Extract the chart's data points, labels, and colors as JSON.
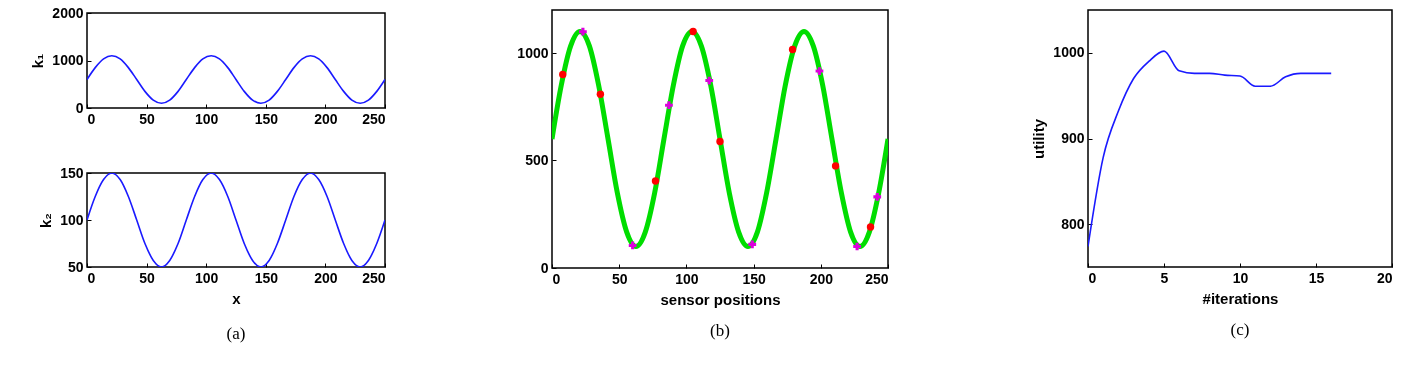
{
  "chart_data": [
    {
      "type": "line",
      "ylabel": "k₁",
      "color": "#1a1aff",
      "x": [
        0,
        6.9,
        13.9,
        20.8,
        27.8,
        34.7,
        41.7,
        48.6,
        55.6,
        62.5,
        69.4,
        76.4,
        83.3,
        90.3,
        97.2,
        104.2,
        111.1,
        118.1,
        125,
        131.9,
        138.9,
        145.8,
        152.8,
        159.7,
        166.7,
        173.6,
        180.6,
        187.5,
        194.4,
        201.4,
        208.3,
        215.3,
        222.2,
        229.2,
        236.1,
        243.1,
        250
      ],
      "values": [
        600,
        850,
        1033,
        1100,
        1033,
        850,
        600,
        350,
        167,
        100,
        167,
        350,
        600,
        850,
        1033,
        1100,
        1033,
        850,
        600,
        350,
        167,
        100,
        167,
        350,
        600,
        850,
        1033,
        1100,
        1033,
        850,
        600,
        350,
        167,
        100,
        167,
        350,
        600
      ],
      "xlim": [
        0,
        250
      ],
      "xticks": [
        0,
        50,
        100,
        150,
        200,
        250
      ],
      "ylim": [
        0,
        2000
      ],
      "yticks": [
        0,
        1000,
        2000
      ]
    },
    {
      "type": "line",
      "xlabel": "x",
      "ylabel": "k₂",
      "color": "#1a1aff",
      "x": [
        0,
        6.9,
        13.9,
        20.8,
        27.8,
        34.7,
        41.7,
        48.6,
        55.6,
        62.5,
        69.4,
        76.4,
        83.3,
        90.3,
        97.2,
        104.2,
        111.1,
        118.1,
        125,
        131.9,
        138.9,
        145.8,
        152.8,
        159.7,
        166.7,
        173.6,
        180.6,
        187.5,
        194.4,
        201.4,
        208.3,
        215.3,
        222.2,
        229.2,
        236.1,
        243.1,
        250
      ],
      "values": [
        100,
        125,
        143,
        150,
        143,
        125,
        100,
        75,
        57,
        50,
        57,
        75,
        100,
        125,
        143,
        150,
        143,
        125,
        100,
        75,
        57,
        50,
        57,
        75,
        100,
        125,
        143,
        150,
        143,
        125,
        100,
        75,
        57,
        50,
        57,
        75,
        100
      ],
      "xlim": [
        0,
        250
      ],
      "xticks": [
        0,
        50,
        100,
        150,
        200,
        250
      ],
      "ylim": [
        50,
        150
      ],
      "yticks": [
        50,
        100,
        150
      ],
      "annotations": [
        "(a)"
      ]
    },
    {
      "type": "line",
      "xlabel": "sensor positions",
      "xlim": [
        0,
        250
      ],
      "xticks": [
        0,
        50,
        100,
        150,
        200,
        250
      ],
      "ylim": [
        0,
        1200
      ],
      "yticks": [
        0,
        500,
        1000
      ],
      "annotations": [
        "(b)"
      ],
      "series": [
        {
          "type": "line",
          "color": "#00dd00",
          "x": [
            0,
            6.9,
            13.9,
            20.8,
            27.8,
            34.7,
            41.7,
            48.6,
            55.6,
            62.5,
            69.4,
            76.4,
            83.3,
            90.3,
            97.2,
            104.2,
            111.1,
            118.1,
            125,
            131.9,
            138.9,
            145.8,
            152.8,
            159.7,
            166.7,
            173.6,
            180.6,
            187.5,
            194.4,
            201.4,
            208.3,
            215.3,
            222.2,
            229.2,
            236.1,
            243.1,
            250
          ],
          "values": [
            600,
            850,
            1033,
            1100,
            1033,
            850,
            600,
            350,
            167,
            100,
            167,
            350,
            600,
            850,
            1033,
            1100,
            1033,
            850,
            600,
            350,
            167,
            100,
            167,
            350,
            600,
            850,
            1033,
            1100,
            1033,
            850,
            600,
            350,
            167,
            100,
            167,
            350,
            600
          ]
        },
        {
          "type": "scatter",
          "marker": "circle",
          "color": "#ff0000",
          "x": [
            8,
            36,
            77,
            105,
            125,
            179,
            211,
            237
          ],
          "values": [
            900,
            808,
            405,
            1100,
            588,
            1016,
            475,
            191
          ]
        },
        {
          "type": "scatter",
          "marker": "cross",
          "color": "#dd00dd",
          "x": [
            23,
            60,
            87,
            117,
            149,
            199,
            227,
            242
          ],
          "values": [
            1099,
            105,
            757,
            872,
            110,
            916,
            100,
            331
          ]
        }
      ]
    },
    {
      "type": "line",
      "xlabel": "#iterations",
      "ylabel": "utility",
      "color": "#1a1aff",
      "x": [
        0,
        1,
        2,
        3,
        4,
        5,
        6,
        7,
        8,
        9,
        10,
        11,
        12,
        13,
        14,
        15,
        16
      ],
      "values": [
        774,
        878,
        932,
        970,
        990,
        1002,
        979,
        976,
        976,
        974,
        973,
        961,
        961,
        972,
        976,
        976,
        976
      ],
      "xlim": [
        0,
        20
      ],
      "xticks": [
        0,
        5,
        10,
        15,
        20
      ],
      "ylim": [
        750,
        1050
      ],
      "yticks": [
        800,
        900,
        1000
      ],
      "annotations": [
        "(c)"
      ]
    }
  ]
}
